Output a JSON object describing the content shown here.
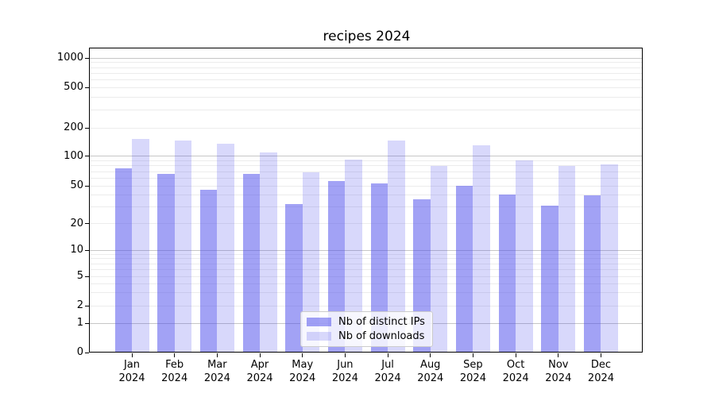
{
  "figure": {
    "title": "recipes 2024"
  },
  "chart_data": {
    "type": "bar",
    "title": "recipes 2024",
    "yscale": "symlog",
    "grid": "both",
    "categories": [
      "Jan",
      "Feb",
      "Mar",
      "Apr",
      "May",
      "Jun",
      "Jul",
      "Aug",
      "Sep",
      "Oct",
      "Nov",
      "Dec"
    ],
    "category_year": "2024",
    "series": [
      {
        "name": "Nb of distinct IPs",
        "color": "#4646eb80",
        "color_on_white": "#a2a2f0",
        "values": [
          75,
          66,
          46,
          66,
          32,
          56,
          53,
          36,
          50,
          41,
          31,
          40
        ]
      },
      {
        "name": "Nb of downloads",
        "color": "#4646eb36",
        "color_on_white": "#d8d8f8",
        "values": [
          152,
          148,
          136,
          110,
          69,
          93,
          146,
          79,
          130,
          91,
          79,
          82
        ]
      }
    ],
    "y_ticks": [
      0,
      1,
      2,
      5,
      10,
      20,
      50,
      100,
      200,
      500,
      1000
    ],
    "ylim": [
      0,
      1265
    ],
    "legend_position": "lower center"
  },
  "colors": {
    "major_grid": "#c6c6c6",
    "minor_grid": "#ececec",
    "axis": "#000000",
    "background": "#ffffff"
  }
}
